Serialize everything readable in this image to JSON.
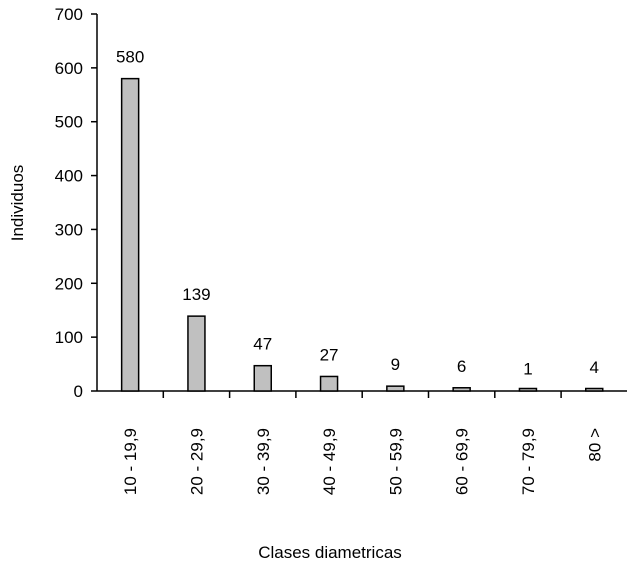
{
  "chart_data": {
    "type": "bar",
    "title": "",
    "xlabel": "Clases diametricas",
    "ylabel": "Individuos",
    "categories": [
      "10  -  19,9",
      "20  -  29,9",
      "30  -  39,9",
      "40  -  49,9",
      "50  -  59,9",
      "60  -  69,9",
      "70  -  79,9",
      "80 >"
    ],
    "values": [
      580,
      139,
      47,
      27,
      9,
      6,
      1,
      4
    ],
    "data_labels": [
      "580",
      "139",
      "47",
      "27",
      "9",
      "6",
      "1",
      "4"
    ],
    "ylim": [
      0,
      700
    ],
    "yticks": [
      0,
      100,
      200,
      300,
      400,
      500,
      600,
      700
    ],
    "grid": false,
    "legend": "none",
    "bar_color": "#c0c0c0",
    "bar_edge_color": "#000000"
  }
}
